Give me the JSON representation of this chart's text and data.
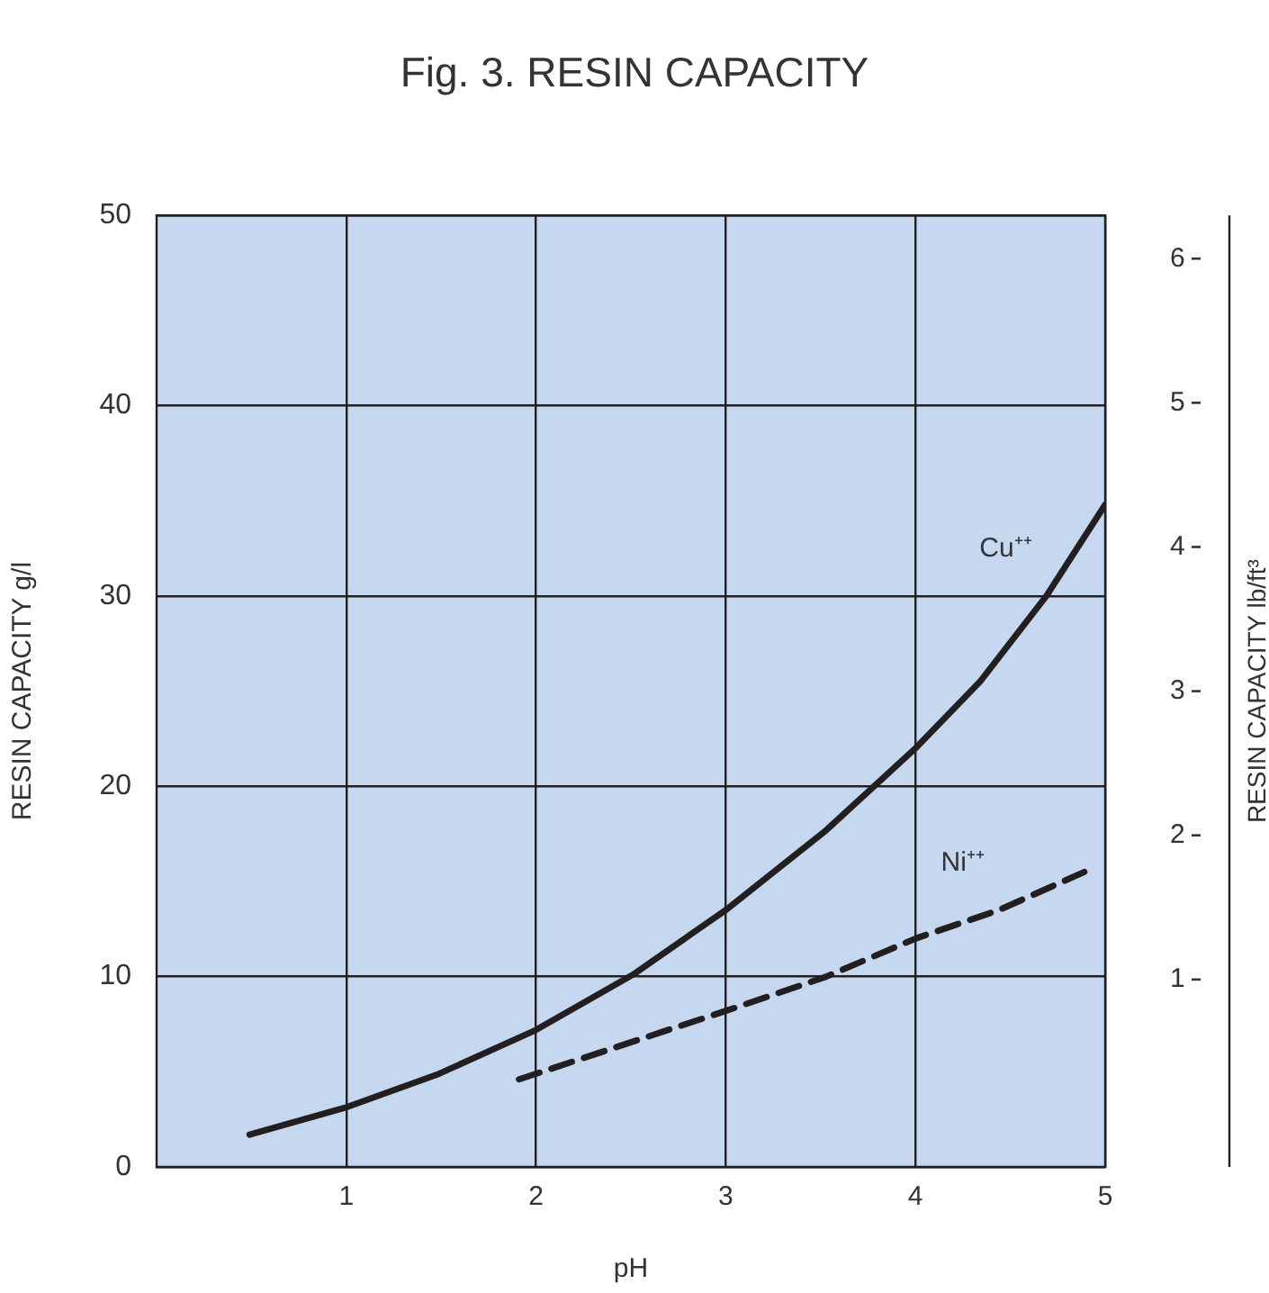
{
  "chart_data": {
    "type": "line",
    "title": "Fig. 3. RESIN CAPACITY",
    "xlabel": "pH",
    "ylabel": "RESIN CAPACITY g/l",
    "y2label": "RESIN CAPACITY lb/ft³",
    "xlim": [
      0,
      5
    ],
    "xticks": [
      1,
      2,
      3,
      4,
      5
    ],
    "ylim": [
      0,
      50
    ],
    "yticks": [
      0,
      10,
      20,
      30,
      40,
      50
    ],
    "y2lim": [
      -0.3,
      6.3
    ],
    "y2ticks": [
      1,
      2,
      3,
      4,
      5,
      6
    ],
    "grid": true,
    "legend": false,
    "marker": "none",
    "series": [
      {
        "name": "Cu⁺⁺",
        "color": "#231f20",
        "line_style": "solid",
        "x": [
          0.49,
          0.99,
          1.49,
          2.0,
          2.51,
          3.0,
          3.53,
          4.0,
          4.34,
          4.69,
          5.0
        ],
        "values": [
          1.7,
          3.1,
          4.9,
          7.2,
          10.1,
          13.5,
          17.7,
          22.0,
          25.5,
          30.0,
          34.8
        ]
      },
      {
        "name": "Ni⁺⁺",
        "color": "#231f20",
        "line_style": "dashed",
        "x": [
          1.91,
          3.0,
          3.53,
          4.0,
          4.44,
          4.89
        ],
        "values": [
          4.6,
          8.2,
          10.0,
          12.0,
          13.5,
          15.5
        ]
      }
    ]
  }
}
